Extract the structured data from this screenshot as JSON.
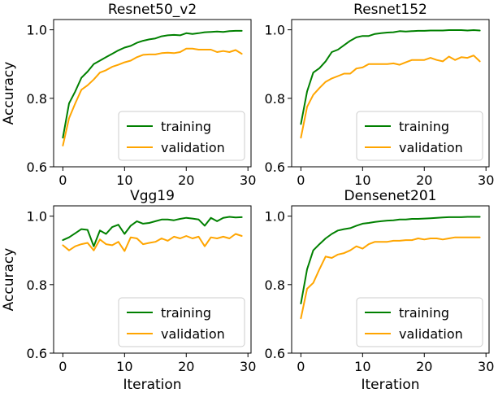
{
  "chart_data": [
    {
      "type": "line",
      "title": "Resnet50_v2",
      "xlabel": "",
      "ylabel": "Accuracy",
      "xlim": [
        -1.5,
        30.5
      ],
      "ylim": [
        0.6,
        1.03
      ],
      "xticks": [
        0,
        10,
        20,
        30
      ],
      "yticks": [
        0.6,
        0.8,
        1.0
      ],
      "xtick_labels": [
        "0",
        "10",
        "20",
        "30"
      ],
      "ytick_labels": [
        "0.6",
        "0.8",
        "1.0"
      ],
      "legend": "lower-right",
      "x": [
        0,
        1,
        2,
        3,
        4,
        5,
        6,
        7,
        8,
        9,
        10,
        11,
        12,
        13,
        14,
        15,
        16,
        17,
        18,
        19,
        20,
        21,
        22,
        23,
        24,
        25,
        26,
        27,
        28,
        29
      ],
      "series": [
        {
          "name": "training",
          "color": "#008000",
          "values": [
            0.685,
            0.785,
            0.82,
            0.86,
            0.878,
            0.9,
            0.91,
            0.92,
            0.93,
            0.94,
            0.948,
            0.953,
            0.962,
            0.968,
            0.972,
            0.975,
            0.981,
            0.984,
            0.985,
            0.984,
            0.99,
            0.988,
            0.99,
            0.993,
            0.994,
            0.995,
            0.994,
            0.996,
            0.997,
            0.997
          ]
        },
        {
          "name": "validation",
          "color": "#FFA500",
          "values": [
            0.662,
            0.742,
            0.785,
            0.825,
            0.838,
            0.855,
            0.875,
            0.882,
            0.892,
            0.898,
            0.905,
            0.91,
            0.92,
            0.927,
            0.928,
            0.928,
            0.932,
            0.933,
            0.932,
            0.935,
            0.945,
            0.945,
            0.942,
            0.942,
            0.942,
            0.935,
            0.938,
            0.935,
            0.941,
            0.93
          ]
        }
      ]
    },
    {
      "type": "line",
      "title": "Resnet152",
      "xlabel": "",
      "ylabel": "",
      "xlim": [
        -1.5,
        30.5
      ],
      "ylim": [
        0.6,
        1.03
      ],
      "xticks": [
        0,
        10,
        20,
        30
      ],
      "yticks": [
        0.6,
        0.8,
        1.0
      ],
      "xtick_labels": [
        "0",
        "10",
        "20",
        "30"
      ],
      "ytick_labels": [
        "0.6",
        "0.8",
        "1.0"
      ],
      "legend": "lower-right",
      "x": [
        0,
        1,
        2,
        3,
        4,
        5,
        6,
        7,
        8,
        9,
        10,
        11,
        12,
        13,
        14,
        15,
        16,
        17,
        18,
        19,
        20,
        21,
        22,
        23,
        24,
        25,
        26,
        27,
        28,
        29
      ],
      "series": [
        {
          "name": "training",
          "color": "#008000",
          "values": [
            0.725,
            0.82,
            0.875,
            0.888,
            0.908,
            0.935,
            0.942,
            0.955,
            0.968,
            0.978,
            0.982,
            0.982,
            0.988,
            0.99,
            0.992,
            0.993,
            0.996,
            0.995,
            0.996,
            0.997,
            0.997,
            0.998,
            0.998,
            0.998,
            0.999,
            0.999,
            0.999,
            0.998,
            0.999,
            0.998
          ]
        },
        {
          "name": "validation",
          "color": "#FFA500",
          "values": [
            0.685,
            0.775,
            0.81,
            0.83,
            0.848,
            0.858,
            0.865,
            0.872,
            0.872,
            0.887,
            0.89,
            0.9,
            0.9,
            0.9,
            0.9,
            0.902,
            0.898,
            0.905,
            0.912,
            0.912,
            0.912,
            0.918,
            0.912,
            0.908,
            0.922,
            0.912,
            0.92,
            0.918,
            0.925,
            0.908
          ]
        }
      ]
    },
    {
      "type": "line",
      "title": "Vgg19",
      "xlabel": "Iteration",
      "ylabel": "Accuracy",
      "xlim": [
        -1.5,
        30.5
      ],
      "ylim": [
        0.6,
        1.03
      ],
      "xticks": [
        0,
        10,
        20,
        30
      ],
      "yticks": [
        0.6,
        0.8,
        1.0
      ],
      "xtick_labels": [
        "0",
        "10",
        "20",
        "30"
      ],
      "ytick_labels": [
        "0.6",
        "0.8",
        "1.0"
      ],
      "legend": "lower-right",
      "x": [
        0,
        1,
        2,
        3,
        4,
        5,
        6,
        7,
        8,
        9,
        10,
        11,
        12,
        13,
        14,
        15,
        16,
        17,
        18,
        19,
        20,
        21,
        22,
        23,
        24,
        25,
        26,
        27,
        28,
        29
      ],
      "series": [
        {
          "name": "training",
          "color": "#008000",
          "values": [
            0.93,
            0.938,
            0.95,
            0.962,
            0.96,
            0.912,
            0.958,
            0.948,
            0.968,
            0.975,
            0.948,
            0.972,
            0.985,
            0.978,
            0.98,
            0.985,
            0.99,
            0.99,
            0.988,
            0.992,
            0.995,
            0.993,
            0.99,
            0.972,
            0.995,
            0.985,
            0.995,
            0.998,
            0.996,
            0.997
          ]
        },
        {
          "name": "validation",
          "color": "#FFA500",
          "values": [
            0.915,
            0.9,
            0.912,
            0.918,
            0.922,
            0.9,
            0.932,
            0.918,
            0.915,
            0.925,
            0.898,
            0.938,
            0.935,
            0.918,
            0.922,
            0.925,
            0.935,
            0.928,
            0.94,
            0.935,
            0.942,
            0.935,
            0.94,
            0.912,
            0.938,
            0.935,
            0.94,
            0.935,
            0.948,
            0.942
          ]
        }
      ]
    },
    {
      "type": "line",
      "title": "Densenet201",
      "xlabel": "Iteration",
      "ylabel": "",
      "xlim": [
        -1.5,
        30.5
      ],
      "ylim": [
        0.6,
        1.03
      ],
      "xticks": [
        0,
        10,
        20,
        30
      ],
      "yticks": [
        0.6,
        0.8,
        1.0
      ],
      "xtick_labels": [
        "0",
        "10",
        "20",
        "30"
      ],
      "ytick_labels": [
        "0.6",
        "0.8",
        "1.0"
      ],
      "legend": "lower-right",
      "x": [
        0,
        1,
        2,
        3,
        4,
        5,
        6,
        7,
        8,
        9,
        10,
        11,
        12,
        13,
        14,
        15,
        16,
        17,
        18,
        19,
        20,
        21,
        22,
        23,
        24,
        25,
        26,
        27,
        28,
        29
      ],
      "series": [
        {
          "name": "training",
          "color": "#008000",
          "values": [
            0.745,
            0.845,
            0.9,
            0.918,
            0.935,
            0.948,
            0.958,
            0.962,
            0.965,
            0.972,
            0.978,
            0.98,
            0.983,
            0.985,
            0.987,
            0.988,
            0.99,
            0.99,
            0.992,
            0.992,
            0.993,
            0.994,
            0.995,
            0.996,
            0.997,
            0.997,
            0.997,
            0.998,
            0.998,
            0.998
          ]
        },
        {
          "name": "validation",
          "color": "#FFA500",
          "values": [
            0.702,
            0.788,
            0.805,
            0.845,
            0.882,
            0.878,
            0.888,
            0.892,
            0.9,
            0.912,
            0.905,
            0.918,
            0.925,
            0.925,
            0.925,
            0.928,
            0.928,
            0.93,
            0.93,
            0.935,
            0.932,
            0.935,
            0.935,
            0.932,
            0.935,
            0.938,
            0.938,
            0.938,
            0.938,
            0.938
          ]
        }
      ]
    }
  ]
}
